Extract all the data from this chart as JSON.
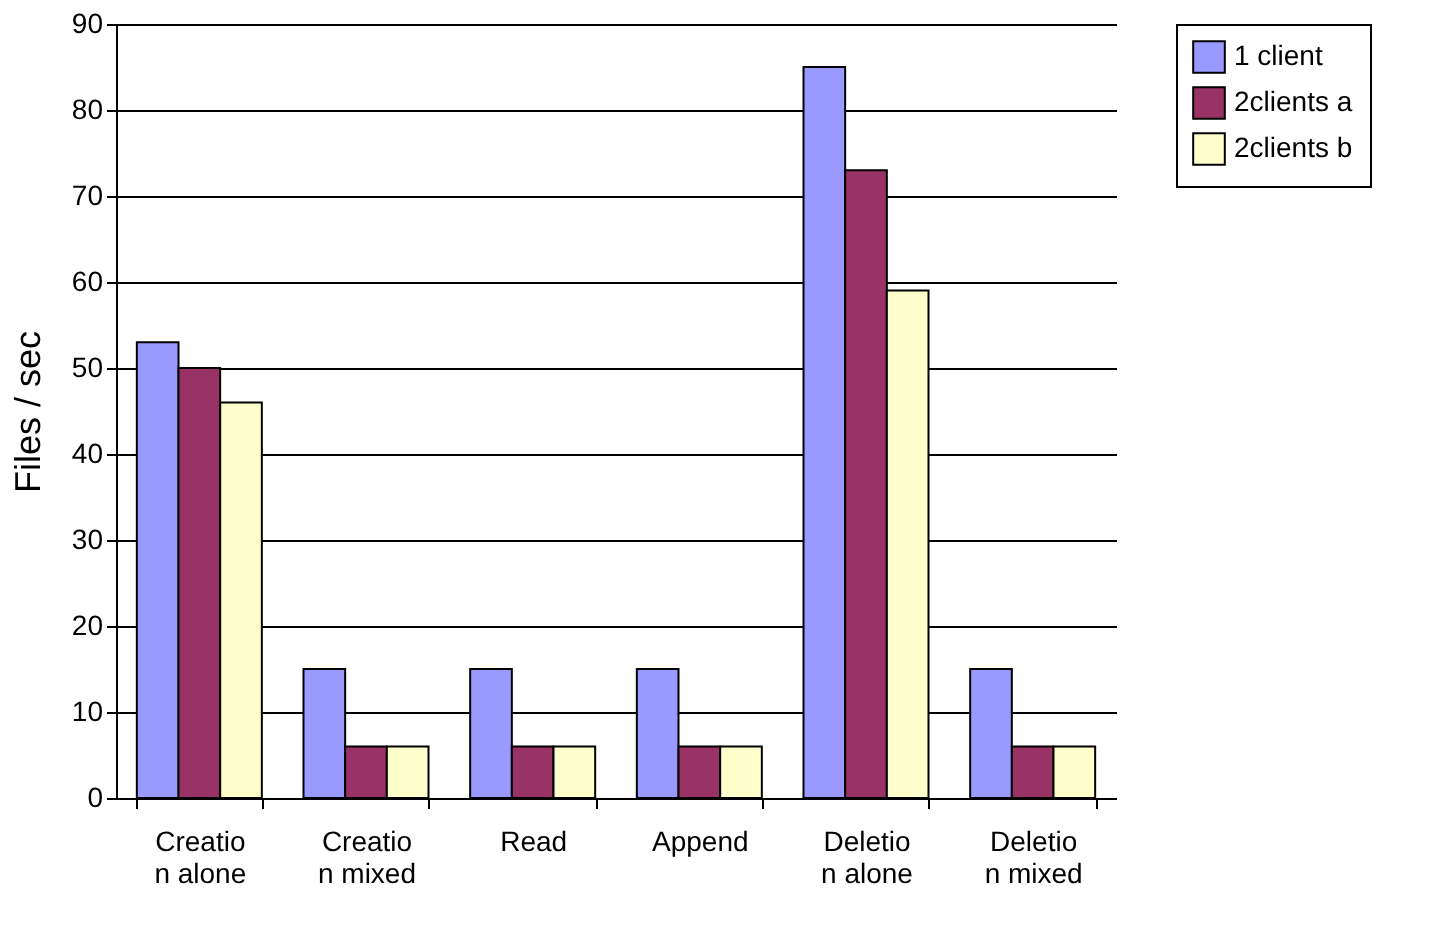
{
  "chart_data": {
    "type": "bar",
    "ylabel": "Files / sec",
    "categories": [
      "Creatio\nn alone",
      "Creatio\nn mixed",
      "Read",
      "Append",
      "Deletio\nn alone",
      "Deletio\nn mixed"
    ],
    "series": [
      {
        "name": "1 client",
        "color": "#9999ff",
        "values": [
          53,
          15,
          15,
          15,
          85,
          15
        ]
      },
      {
        "name": "2clients a",
        "color": "#993366",
        "values": [
          50,
          6,
          6,
          6,
          73,
          6
        ]
      },
      {
        "name": "2clients b",
        "color": "#ffffcc",
        "values": [
          46,
          6,
          6,
          6,
          59,
          6
        ]
      }
    ],
    "ylim": [
      0,
      90
    ],
    "yticks": [
      0,
      10,
      20,
      30,
      40,
      50,
      60,
      70,
      80,
      90
    ],
    "grid": "y",
    "legend": "right"
  }
}
